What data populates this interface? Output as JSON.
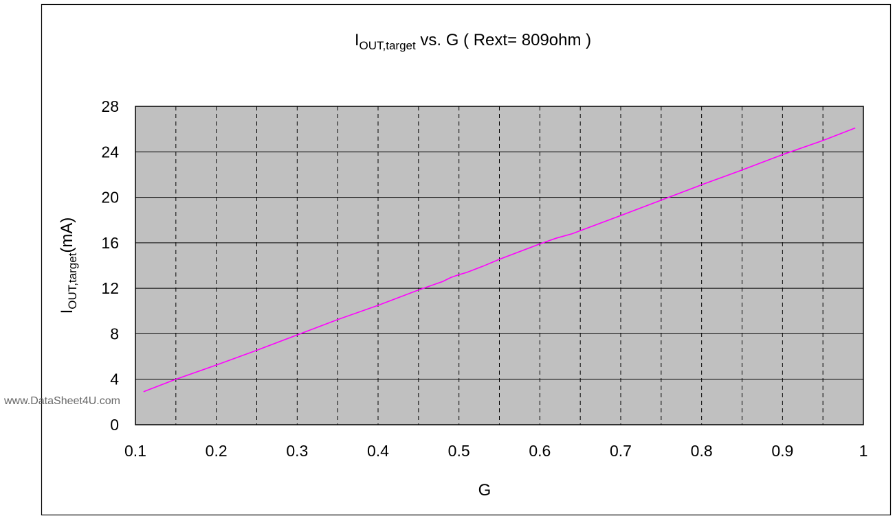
{
  "chart_data": {
    "type": "line",
    "title": {
      "main": "I",
      "sub": "OUT,target",
      "rest": " vs. G ( Rext= 809ohm )"
    },
    "xlabel": "G",
    "ylabel": {
      "main": "I",
      "sub": "OUT,target",
      "rest": "(mA)"
    },
    "xlim": [
      0.1,
      1
    ],
    "ylim": [
      0,
      28
    ],
    "x_ticks": [
      0.1,
      0.2,
      0.3,
      0.4,
      0.5,
      0.6,
      0.7,
      0.8,
      0.9,
      1
    ],
    "x_tick_labels": [
      "0.1",
      "0.2",
      "0.3",
      "0.4",
      "0.5",
      "0.6",
      "0.7",
      "0.8",
      "0.9",
      "1"
    ],
    "x_minor_ticks": [
      0.15,
      0.25,
      0.35,
      0.45,
      0.55,
      0.65,
      0.75,
      0.85,
      0.95
    ],
    "y_ticks": [
      0,
      4,
      8,
      12,
      16,
      20,
      24,
      28
    ],
    "y_tick_labels": [
      "0",
      "4",
      "8",
      "12",
      "16",
      "20",
      "24",
      "28"
    ],
    "grid": "horizontal solid, vertical dashed",
    "plot_background": "#c0c0c0",
    "series": [
      {
        "color": "#ff00ff",
        "x": [
          0.11,
          0.15,
          0.2,
          0.25,
          0.3,
          0.35,
          0.4,
          0.45,
          0.48,
          0.49,
          0.5,
          0.51,
          0.53,
          0.55,
          0.6,
          0.62,
          0.64,
          0.7,
          0.75,
          0.8,
          0.85,
          0.9,
          0.95,
          0.99
        ],
        "y": [
          2.9,
          4.0,
          5.25,
          6.55,
          7.9,
          9.25,
          10.5,
          11.85,
          12.6,
          12.95,
          13.2,
          13.4,
          13.95,
          14.55,
          15.9,
          16.4,
          16.8,
          18.4,
          19.75,
          21.1,
          22.4,
          23.75,
          25.0,
          26.1
        ]
      }
    ]
  },
  "watermark": "www.DataSheet4U.com"
}
